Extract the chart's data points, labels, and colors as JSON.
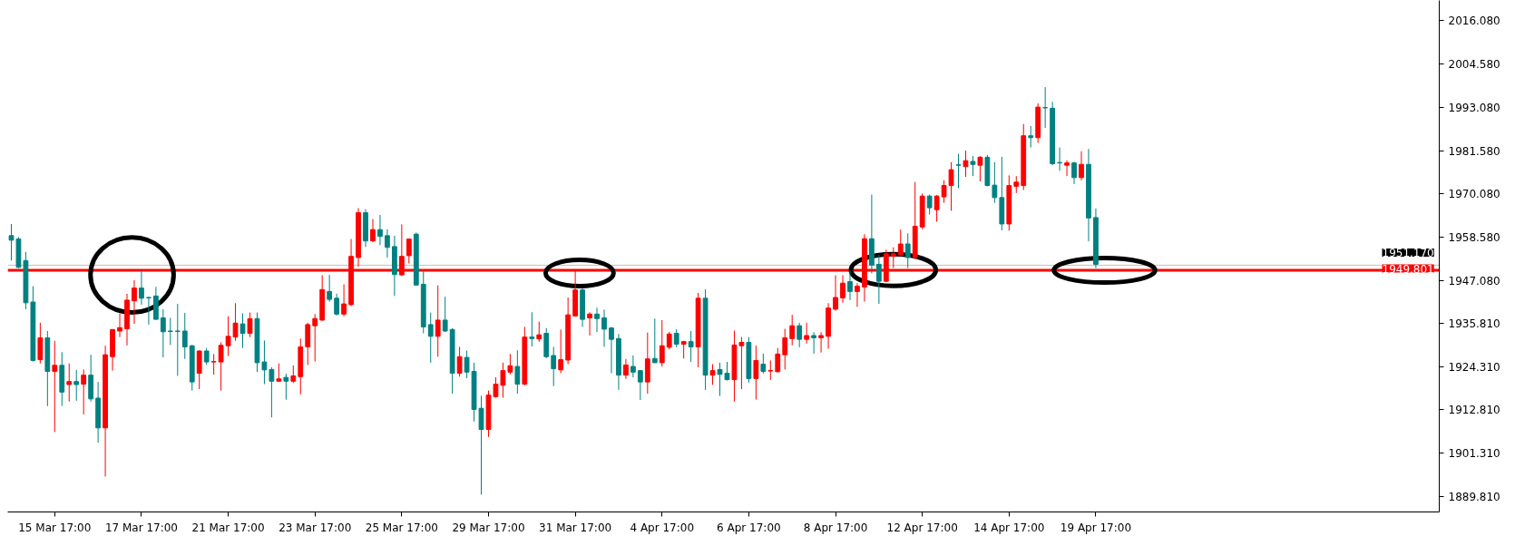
{
  "chart_data": {
    "type": "candlestick",
    "categories": [
      null,
      null,
      null,
      null,
      null,
      null,
      "15 Mar 17:00",
      null,
      null,
      null,
      null,
      null,
      null,
      null,
      null,
      null,
      null,
      null,
      "17 Mar 17:00",
      null,
      null,
      null,
      null,
      null,
      null,
      null,
      null,
      null,
      null,
      null,
      "21 Mar 17:00",
      null,
      null,
      null,
      null,
      null,
      null,
      null,
      null,
      null,
      null,
      null,
      "23 Mar 17:00",
      null,
      null,
      null,
      null,
      null,
      null,
      null,
      null,
      null,
      null,
      null,
      "25 Mar 17:00",
      null,
      null,
      null,
      null,
      null,
      null,
      null,
      null,
      null,
      null,
      null,
      "29 Mar 17:00",
      null,
      null,
      null,
      null,
      null,
      null,
      null,
      null,
      null,
      null,
      null,
      "31 Mar 17:00",
      null,
      null,
      null,
      null,
      null,
      null,
      null,
      null,
      null,
      null,
      null,
      "4 Apr 17:00",
      null,
      null,
      null,
      null,
      null,
      null,
      null,
      null,
      null,
      null,
      null,
      "6 Apr 17:00",
      null,
      null,
      null,
      null,
      null,
      null,
      null,
      null,
      null,
      null,
      null,
      "8 Apr 17:00",
      null,
      null,
      null,
      null,
      null,
      null,
      null,
      null,
      null,
      null,
      null,
      "12 Apr 17:00",
      null,
      null,
      null,
      null,
      null,
      null,
      null,
      null,
      null,
      null,
      null,
      "14 Apr 17:00",
      null,
      null,
      null,
      null,
      null,
      null,
      null,
      null,
      null,
      null,
      null,
      "19 Apr 17:00",
      null,
      null,
      null,
      null,
      null,
      null,
      null,
      null,
      null,
      null,
      null,
      null,
      null,
      null,
      null,
      null,
      null,
      null,
      null,
      null,
      null,
      null,
      null,
      null,
      null,
      null,
      null,
      null,
      null,
      null,
      null,
      null,
      null,
      null,
      null,
      null,
      null,
      null,
      null,
      null,
      null,
      null,
      null,
      null,
      null,
      null,
      null
    ],
    "ohlc": [
      [
        1959.0,
        1962.1,
        1952.4,
        1957.8
      ],
      [
        1958.1,
        1958.6,
        1950.4,
        1950.6
      ],
      [
        1952.4,
        1954.7,
        1939.5,
        1941.2
      ],
      [
        1941.4,
        1945.6,
        1925.6,
        1925.9
      ],
      [
        1926.1,
        1935.9,
        1925.1,
        1931.9
      ],
      [
        1931.9,
        1933.7,
        1913.8,
        1923.0
      ],
      [
        1923.0,
        1931.1,
        1906.9,
        1924.6
      ],
      [
        1924.6,
        1928.1,
        1913.8,
        1917.5
      ],
      [
        1919.5,
        1925.1,
        1915.0,
        1920.3
      ],
      [
        1920.3,
        1923.4,
        1915.2,
        1919.5
      ],
      [
        1919.6,
        1923.5,
        1911.6,
        1922.0
      ],
      [
        1922.0,
        1927.4,
        1915.0,
        1915.7
      ],
      [
        1915.9,
        1920.2,
        1904.1,
        1908.0
      ],
      [
        1908.0,
        1929.8,
        1895.1,
        1927.4
      ],
      [
        1926.9,
        1934.2,
        1923.2,
        1934.1
      ],
      [
        1933.7,
        1938.4,
        1932.1,
        1934.6
      ],
      [
        1934.3,
        1943.6,
        1929.9,
        1941.9
      ],
      [
        1941.7,
        1947.2,
        1935.6,
        1945.1
      ],
      [
        1945.1,
        1949.8,
        1940.7,
        1942.4
      ],
      [
        1942.6,
        1942.8,
        1935.4,
        1942.5
      ],
      [
        1943.0,
        1945.4,
        1936.7,
        1936.8
      ],
      [
        1937.2,
        1939.5,
        1926.7,
        1933.5
      ],
      [
        1933.7,
        1937.2,
        1930.0,
        1933.6
      ],
      [
        1933.7,
        1940.9,
        1921.8,
        1933.6
      ],
      [
        1933.7,
        1938.5,
        1926.3,
        1929.5
      ],
      [
        1929.8,
        1930.0,
        1917.9,
        1920.2
      ],
      [
        1922.5,
        1928.6,
        1918.3,
        1928.4
      ],
      [
        1928.4,
        1929.2,
        1924.7,
        1925.5
      ],
      [
        1925.5,
        1927.6,
        1922.1,
        1925.6
      ],
      [
        1925.5,
        1930.7,
        1917.9,
        1929.9
      ],
      [
        1929.8,
        1937.6,
        1927.1,
        1932.3
      ],
      [
        1932.1,
        1941.1,
        1931.1,
        1935.8
      ],
      [
        1935.6,
        1938.4,
        1929.2,
        1933.1
      ],
      [
        1933.1,
        1938.6,
        1932.1,
        1937.0
      ],
      [
        1937.0,
        1938.6,
        1922.8,
        1925.3
      ],
      [
        1925.5,
        1931.2,
        1919.6,
        1923.4
      ],
      [
        1923.5,
        1924.1,
        1910.8,
        1920.4
      ],
      [
        1920.4,
        1925.1,
        1920.2,
        1921.0
      ],
      [
        1921.4,
        1922.4,
        1915.5,
        1920.4
      ],
      [
        1920.4,
        1924.6,
        1919.9,
        1921.8
      ],
      [
        1921.6,
        1931.7,
        1916.9,
        1929.5
      ],
      [
        1929.5,
        1935.9,
        1924.7,
        1935.4
      ],
      [
        1935.1,
        1938.2,
        1925.6,
        1937.0
      ],
      [
        1936.6,
        1948.5,
        1936.4,
        1944.7
      ],
      [
        1944.2,
        1948.6,
        1941.5,
        1942.1
      ],
      [
        1942.4,
        1943.6,
        1937.8,
        1938.2
      ],
      [
        1938.2,
        1946.1,
        1937.6,
        1940.9
      ],
      [
        1940.7,
        1958.1,
        1940.3,
        1953.5
      ],
      [
        1953.2,
        1966.3,
        1950.8,
        1965.1
      ],
      [
        1965.1,
        1966.0,
        1956.0,
        1957.6
      ],
      [
        1957.6,
        1963.4,
        1957.3,
        1960.6
      ],
      [
        1960.6,
        1964.5,
        1956.5,
        1958.8
      ],
      [
        1959.0,
        1960.7,
        1953.2,
        1955.9
      ],
      [
        1956.1,
        1959.0,
        1943.0,
        1948.7
      ],
      [
        1948.6,
        1962.0,
        1948.3,
        1953.5
      ],
      [
        1953.7,
        1958.2,
        1951.6,
        1958.1
      ],
      [
        1959.4,
        1959.8,
        1945.8,
        1945.9
      ],
      [
        1946.1,
        1950.0,
        1933.1,
        1934.8
      ],
      [
        1935.4,
        1938.6,
        1925.3,
        1932.3
      ],
      [
        1932.3,
        1945.8,
        1926.9,
        1936.6
      ],
      [
        1936.6,
        1942.8,
        1933.4,
        1933.7
      ],
      [
        1934.1,
        1934.5,
        1917.1,
        1922.5
      ],
      [
        1922.5,
        1929.5,
        1921.6,
        1926.9
      ],
      [
        1926.7,
        1928.5,
        1921.2,
        1922.8
      ],
      [
        1923.0,
        1925.3,
        1909.7,
        1912.9
      ],
      [
        1913.2,
        1916.5,
        1890.3,
        1907.6
      ],
      [
        1907.6,
        1917.9,
        1905.6,
        1916.7
      ],
      [
        1916.3,
        1921.4,
        1916.0,
        1919.6
      ],
      [
        1919.3,
        1925.3,
        1916.0,
        1923.2
      ],
      [
        1922.8,
        1927.6,
        1922.2,
        1924.5
      ],
      [
        1924.3,
        1928.6,
        1917.1,
        1919.6
      ],
      [
        1919.6,
        1934.8,
        1919.3,
        1932.1
      ],
      [
        1932.1,
        1938.7,
        1929.6,
        1931.7
      ],
      [
        1931.6,
        1936.2,
        1930.8,
        1932.7
      ],
      [
        1933.1,
        1934.5,
        1926.5,
        1926.9
      ],
      [
        1927.2,
        1929.5,
        1919.1,
        1923.7
      ],
      [
        1923.4,
        1934.1,
        1922.5,
        1926.1
      ],
      [
        1926.0,
        1942.6,
        1924.9,
        1938.0
      ],
      [
        1937.7,
        1949.8,
        1937.6,
        1944.6
      ],
      [
        1944.6,
        1945.0,
        1934.8,
        1936.8
      ],
      [
        1937.2,
        1938.7,
        1932.5,
        1938.2
      ],
      [
        1938.2,
        1939.9,
        1933.4,
        1937.0
      ],
      [
        1937.2,
        1939.4,
        1929.5,
        1934.2
      ],
      [
        1934.5,
        1934.8,
        1922.5,
        1931.5
      ],
      [
        1931.7,
        1932.9,
        1918.1,
        1922.0
      ],
      [
        1922.0,
        1926.3,
        1921.0,
        1924.7
      ],
      [
        1924.3,
        1927.2,
        1921.4,
        1922.8
      ],
      [
        1923.2,
        1923.3,
        1915.4,
        1920.2
      ],
      [
        1920.2,
        1933.3,
        1917.1,
        1926.3
      ],
      [
        1926.4,
        1937.0,
        1925.3,
        1925.3
      ],
      [
        1925.3,
        1936.6,
        1924.3,
        1929.8
      ],
      [
        1929.4,
        1933.5,
        1928.8,
        1932.9
      ],
      [
        1933.1,
        1934.2,
        1929.4,
        1930.2
      ],
      [
        1930.2,
        1931.1,
        1926.4,
        1930.9
      ],
      [
        1930.9,
        1933.7,
        1925.5,
        1929.5
      ],
      [
        1929.5,
        1943.8,
        1924.1,
        1942.4
      ],
      [
        1942.4,
        1944.8,
        1918.1,
        1922.0
      ],
      [
        1922.0,
        1924.9,
        1919.4,
        1923.2
      ],
      [
        1923.5,
        1925.3,
        1916.5,
        1922.2
      ],
      [
        1922.5,
        1925.5,
        1920.6,
        1920.8
      ],
      [
        1920.8,
        1933.8,
        1915.0,
        1930.0
      ],
      [
        1929.8,
        1932.1,
        1918.3,
        1930.7
      ],
      [
        1930.7,
        1932.1,
        1920.0,
        1921.1
      ],
      [
        1921.1,
        1929.8,
        1915.5,
        1925.9
      ],
      [
        1924.9,
        1927.7,
        1922.4,
        1923.0
      ],
      [
        1923.1,
        1925.9,
        1920.7,
        1923.2
      ],
      [
        1922.9,
        1929.2,
        1922.8,
        1927.6
      ],
      [
        1927.4,
        1934.3,
        1923.5,
        1931.9
      ],
      [
        1931.7,
        1938.0,
        1929.9,
        1935.1
      ],
      [
        1935.1,
        1935.9,
        1929.4,
        1931.5
      ],
      [
        1931.5,
        1935.9,
        1930.4,
        1932.5
      ],
      [
        1932.5,
        1933.4,
        1927.7,
        1931.9
      ],
      [
        1931.9,
        1933.4,
        1928.0,
        1932.5
      ],
      [
        1932.3,
        1941.1,
        1929.0,
        1939.8
      ],
      [
        1939.5,
        1948.5,
        1939.1,
        1942.6
      ],
      [
        1942.5,
        1948.5,
        1941.2,
        1946.4
      ],
      [
        1946.8,
        1949.7,
        1941.9,
        1944.2
      ],
      [
        1944.2,
        1946.4,
        1940.1,
        1945.6
      ],
      [
        1945.4,
        1959.4,
        1941.5,
        1958.2
      ],
      [
        1958.2,
        1969.9,
        1949.0,
        1951.2
      ],
      [
        1951.4,
        1953.9,
        1940.9,
        1946.9
      ],
      [
        1946.9,
        1955.3,
        1946.7,
        1954.2
      ],
      [
        1953.5,
        1955.9,
        1950.4,
        1954.2
      ],
      [
        1953.9,
        1960.6,
        1953.5,
        1956.8
      ],
      [
        1956.8,
        1959.6,
        1950.4,
        1953.2
      ],
      [
        1953.2,
        1973.2,
        1952.8,
        1961.5
      ],
      [
        1961.3,
        1970.2,
        1960.7,
        1969.5
      ],
      [
        1969.5,
        1969.9,
        1964.6,
        1966.4
      ],
      [
        1965.9,
        1969.8,
        1962.7,
        1969.5
      ],
      [
        1969.3,
        1973.7,
        1967.7,
        1972.3
      ],
      [
        1972.3,
        1978.5,
        1965.6,
        1976.5
      ],
      [
        1977.8,
        1980.7,
        1971.6,
        1977.7
      ],
      [
        1977.3,
        1981.6,
        1974.6,
        1978.9
      ],
      [
        1978.7,
        1980.1,
        1974.8,
        1977.9
      ],
      [
        1977.7,
        1980.1,
        1973.4,
        1979.8
      ],
      [
        1979.8,
        1980.4,
        1972.1,
        1972.3
      ],
      [
        1972.4,
        1978.5,
        1967.7,
        1969.1
      ],
      [
        1969.1,
        1979.9,
        1960.4,
        1962.1
      ],
      [
        1962.1,
        1975.0,
        1960.3,
        1972.3
      ],
      [
        1972.1,
        1974.8,
        1970.3,
        1973.2
      ],
      [
        1972.3,
        1988.6,
        1971.1,
        1985.5
      ],
      [
        1985.5,
        1988.1,
        1982.4,
        1985.0
      ],
      [
        1985.0,
        1994.1,
        1983.6,
        1993.1
      ],
      [
        1993.0,
        1998.4,
        1987.6,
        1992.9
      ],
      [
        1992.8,
        1994.5,
        1977.7,
        1978.1
      ],
      [
        1978.4,
        1982.4,
        1976.2,
        1978.3
      ],
      [
        1977.7,
        1979.0,
        1974.8,
        1978.3
      ],
      [
        1978.3,
        1978.6,
        1972.7,
        1974.4
      ],
      [
        1974.4,
        1981.4,
        1973.7,
        1977.9
      ],
      [
        1977.9,
        1982.0,
        1957.5,
        1963.7
      ],
      [
        1963.8,
        1966.2,
        1950.4,
        1951.4
      ],
      null,
      null,
      null,
      null,
      null,
      null,
      null,
      null,
      null,
      null,
      null,
      null,
      null,
      null,
      null,
      null,
      null,
      null,
      null,
      null,
      null,
      null,
      null,
      null,
      null,
      null,
      null,
      null,
      null,
      null,
      null,
      null,
      null,
      null,
      null,
      null,
      null,
      null,
      null,
      null,
      null,
      null,
      null,
      null,
      null,
      null,
      null
    ],
    "colors": [
      "#008080",
      "#008080",
      "#008080",
      "#008080",
      "#ff0000",
      "#008080",
      "#ff0000",
      "#008080",
      "#ff0000",
      "#008080",
      "#ff0000",
      "#008080",
      "#008080",
      "#ff0000",
      "#ff0000",
      "#ff0000",
      "#ff0000",
      "#ff0000",
      "#008080",
      "#008080",
      "#008080",
      "#008080",
      "#008080",
      "#008080",
      "#008080",
      "#008080",
      "#ff0000",
      "#008080",
      "#ff0000",
      "#ff0000",
      "#ff0000",
      "#ff0000",
      "#008080",
      "#ff0000",
      "#008080",
      "#008080",
      "#008080",
      "#ff0000",
      "#008080",
      "#ff0000",
      "#ff0000",
      "#ff0000",
      "#ff0000",
      "#ff0000",
      "#008080",
      "#008080",
      "#ff0000",
      "#ff0000",
      "#ff0000",
      "#008080",
      "#ff0000",
      "#008080",
      "#008080",
      "#008080",
      "#ff0000",
      "#ff0000",
      "#008080",
      "#008080",
      "#008080",
      "#ff0000",
      "#008080",
      "#008080",
      "#ff0000",
      "#008080",
      "#008080",
      "#008080",
      "#ff0000",
      "#ff0000",
      "#ff0000",
      "#ff0000",
      "#008080",
      "#ff0000",
      "#008080",
      "#ff0000",
      "#008080",
      "#008080",
      "#ff0000",
      "#ff0000",
      "#ff0000",
      "#008080",
      "#ff0000",
      "#008080",
      "#008080",
      "#008080",
      "#008080",
      "#ff0000",
      "#008080",
      "#008080",
      "#ff0000",
      "#008080",
      "#ff0000",
      "#ff0000",
      "#008080",
      "#ff0000",
      "#008080",
      "#ff0000",
      "#008080",
      "#ff0000",
      "#008080",
      "#008080",
      "#ff0000",
      "#ff0000",
      "#008080",
      "#ff0000",
      "#008080",
      "#ff0000",
      "#ff0000",
      "#ff0000",
      "#ff0000",
      "#008080",
      "#ff0000",
      "#008080",
      "#ff0000",
      "#ff0000",
      "#ff0000",
      "#ff0000",
      "#008080",
      "#ff0000",
      "#ff0000",
      "#008080",
      "#008080",
      "#ff0000",
      "#ff0000",
      "#ff0000",
      "#008080",
      "#ff0000",
      "#ff0000",
      "#008080",
      "#ff0000",
      "#ff0000",
      "#ff0000",
      "#008080",
      "#ff0000",
      "#008080",
      "#ff0000",
      "#008080",
      "#008080",
      "#008080",
      "#ff0000",
      "#ff0000",
      "#ff0000",
      "#008080",
      "#ff0000",
      "#008080",
      "#008080",
      "#008080",
      "#ff0000",
      "#008080",
      "#ff0000",
      "#008080",
      "#008080",
      null,
      null,
      null,
      null,
      null,
      null,
      null,
      null,
      null,
      null,
      null,
      null,
      null,
      null,
      null,
      null,
      null,
      null,
      null,
      null,
      null,
      null,
      null,
      null,
      null,
      null,
      null,
      null,
      null,
      null,
      null,
      null,
      null,
      null,
      null,
      null,
      null,
      null,
      null,
      null,
      null,
      null,
      null,
      null,
      null,
      null,
      null
    ],
    "ylim": [
      1885.7,
      2021.4
    ],
    "yticks": [
      {
        "value": 1889.81,
        "label": "1889.810"
      },
      {
        "value": 1901.31,
        "label": "1901.310"
      },
      {
        "value": 1912.81,
        "label": "1912.810"
      },
      {
        "value": 1924.31,
        "label": "1924.310"
      },
      {
        "value": 1935.81,
        "label": "1935.810"
      },
      {
        "value": 1947.08,
        "label": "1947.080"
      },
      {
        "value": 1958.58,
        "label": "1958.580"
      },
      {
        "value": 1970.08,
        "label": "1970.080"
      },
      {
        "value": 1981.58,
        "label": "1981.580"
      },
      {
        "value": 1993.08,
        "label": "1993.080"
      },
      {
        "value": 2004.58,
        "label": "2004.580"
      },
      {
        "value": 2016.08,
        "label": "2016.080"
      }
    ],
    "ref_lines": [
      {
        "axis": "y",
        "value": 1951.17,
        "label": "1951.170",
        "color": "#c0c0c0"
      },
      {
        "axis": "y",
        "value": 1949.801,
        "label": "1949.801",
        "color": "#ff0000"
      }
    ]
  }
}
